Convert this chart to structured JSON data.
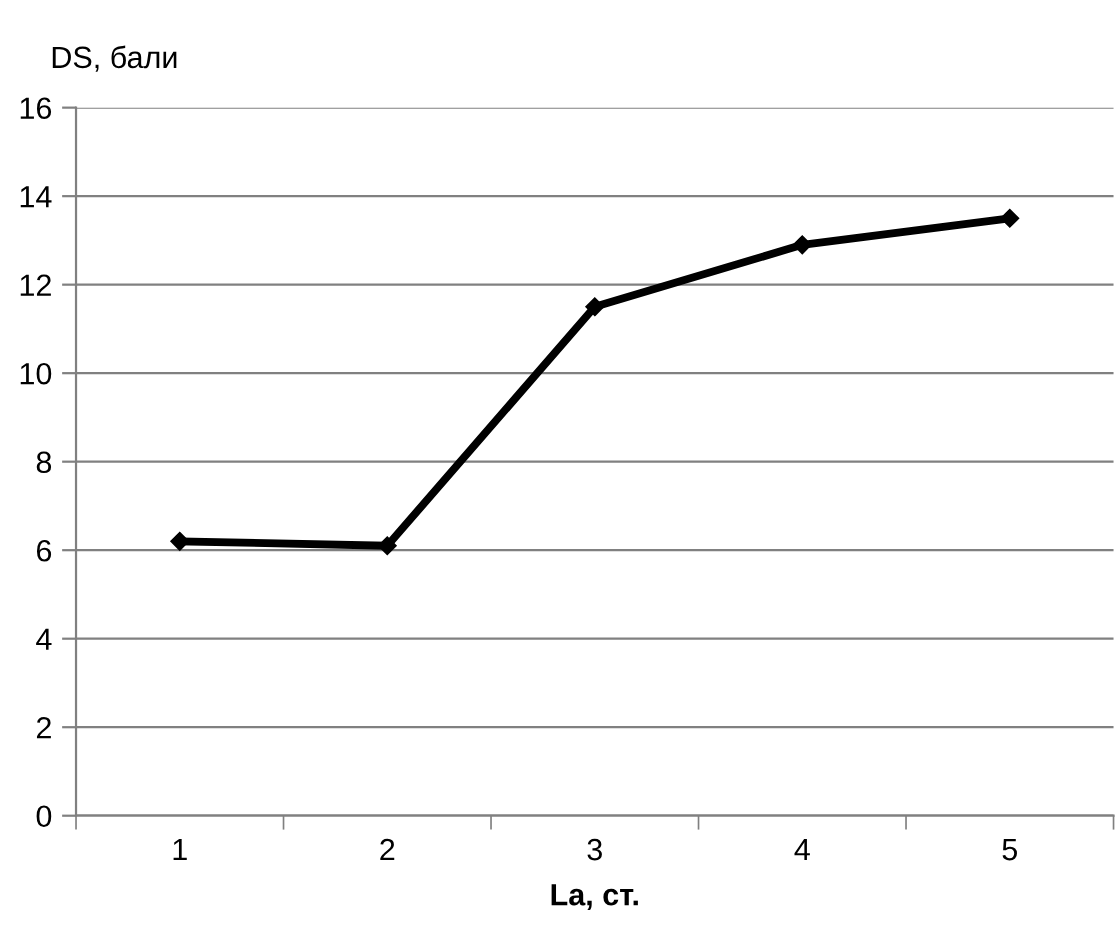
{
  "chart_data": {
    "type": "line",
    "xlabel": "La, ст.",
    "ylabel": "DS, бали",
    "categories": [
      "1",
      "2",
      "3",
      "4",
      "5"
    ],
    "series": [
      {
        "color": "#000000",
        "values": [
          6.2,
          6.1,
          11.5,
          12.9,
          13.5
        ]
      }
    ],
    "ylim": [
      0,
      16
    ],
    "yticks": [
      0,
      2,
      4,
      6,
      8,
      10,
      12,
      14,
      16
    ],
    "grid": "y",
    "marker": "diamond",
    "line_style": "solid",
    "legend": false
  }
}
